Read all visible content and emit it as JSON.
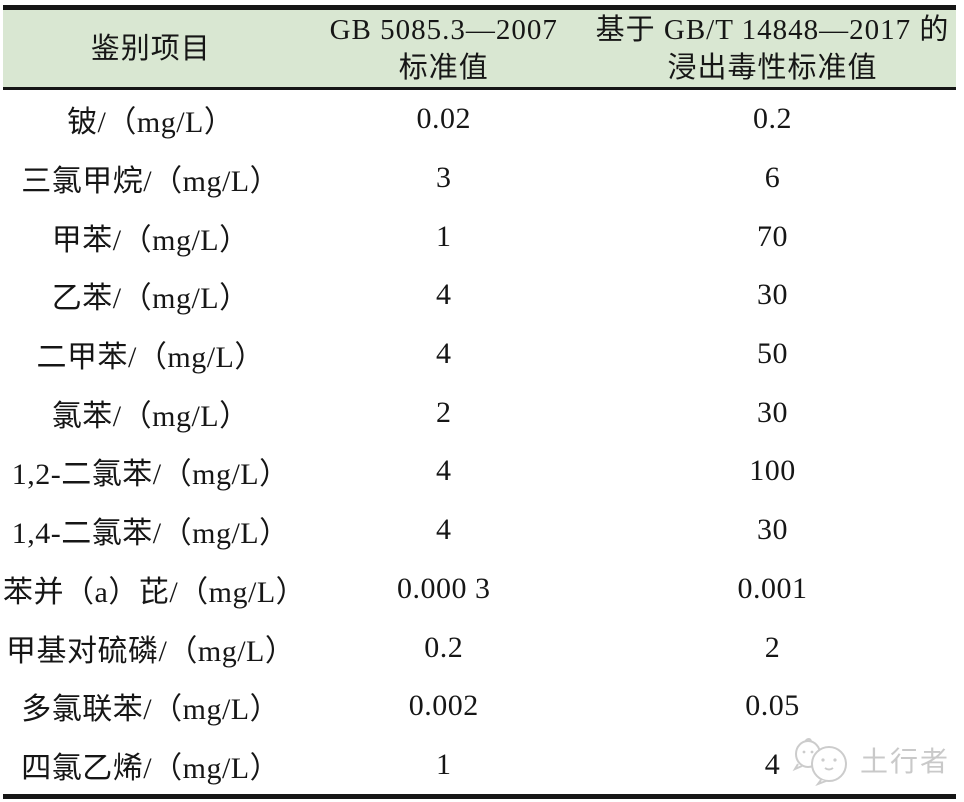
{
  "table": {
    "header": {
      "col_item": "鉴别项目",
      "col_gb5085_line1": "GB 5085.3—2007",
      "col_gb5085_line2": "标准值",
      "col_gbt14848_line1": "基于 GB/T 14848—2017 的",
      "col_gbt14848_line2": "浸出毒性标准值"
    },
    "rows": [
      {
        "item": "铍/（mg/L）",
        "gb5085": "0.02",
        "gbt14848": "0.2"
      },
      {
        "item": "三氯甲烷/（mg/L）",
        "gb5085": "3",
        "gbt14848": "6"
      },
      {
        "item": "甲苯/（mg/L）",
        "gb5085": "1",
        "gbt14848": "70"
      },
      {
        "item": "乙苯/（mg/L）",
        "gb5085": "4",
        "gbt14848": "30"
      },
      {
        "item": "二甲苯/（mg/L）",
        "gb5085": "4",
        "gbt14848": "50"
      },
      {
        "item": "氯苯/（mg/L）",
        "gb5085": "2",
        "gbt14848": "30"
      },
      {
        "item": "1,2-二氯苯/（mg/L）",
        "gb5085": "4",
        "gbt14848": "100"
      },
      {
        "item": "1,4-二氯苯/（mg/L）",
        "gb5085": "4",
        "gbt14848": "30"
      },
      {
        "item": "苯并（a）芘/（mg/L）",
        "gb5085": "0.000 3",
        "gbt14848": "0.001"
      },
      {
        "item": "甲基对硫磷/（mg/L）",
        "gb5085": "0.2",
        "gbt14848": "2"
      },
      {
        "item": "多氯联苯/（mg/L）",
        "gb5085": "0.002",
        "gbt14848": "0.05"
      },
      {
        "item": "四氯乙烯/（mg/L）",
        "gb5085": "1",
        "gbt14848": "4"
      }
    ]
  },
  "watermark": {
    "text": "土行者",
    "logo_icon": "mascot-blobs-icon"
  },
  "colors": {
    "header_bg": "#d9e7d2",
    "border": "#161616",
    "text": "#161616",
    "watermark": "#c9c9c9"
  }
}
